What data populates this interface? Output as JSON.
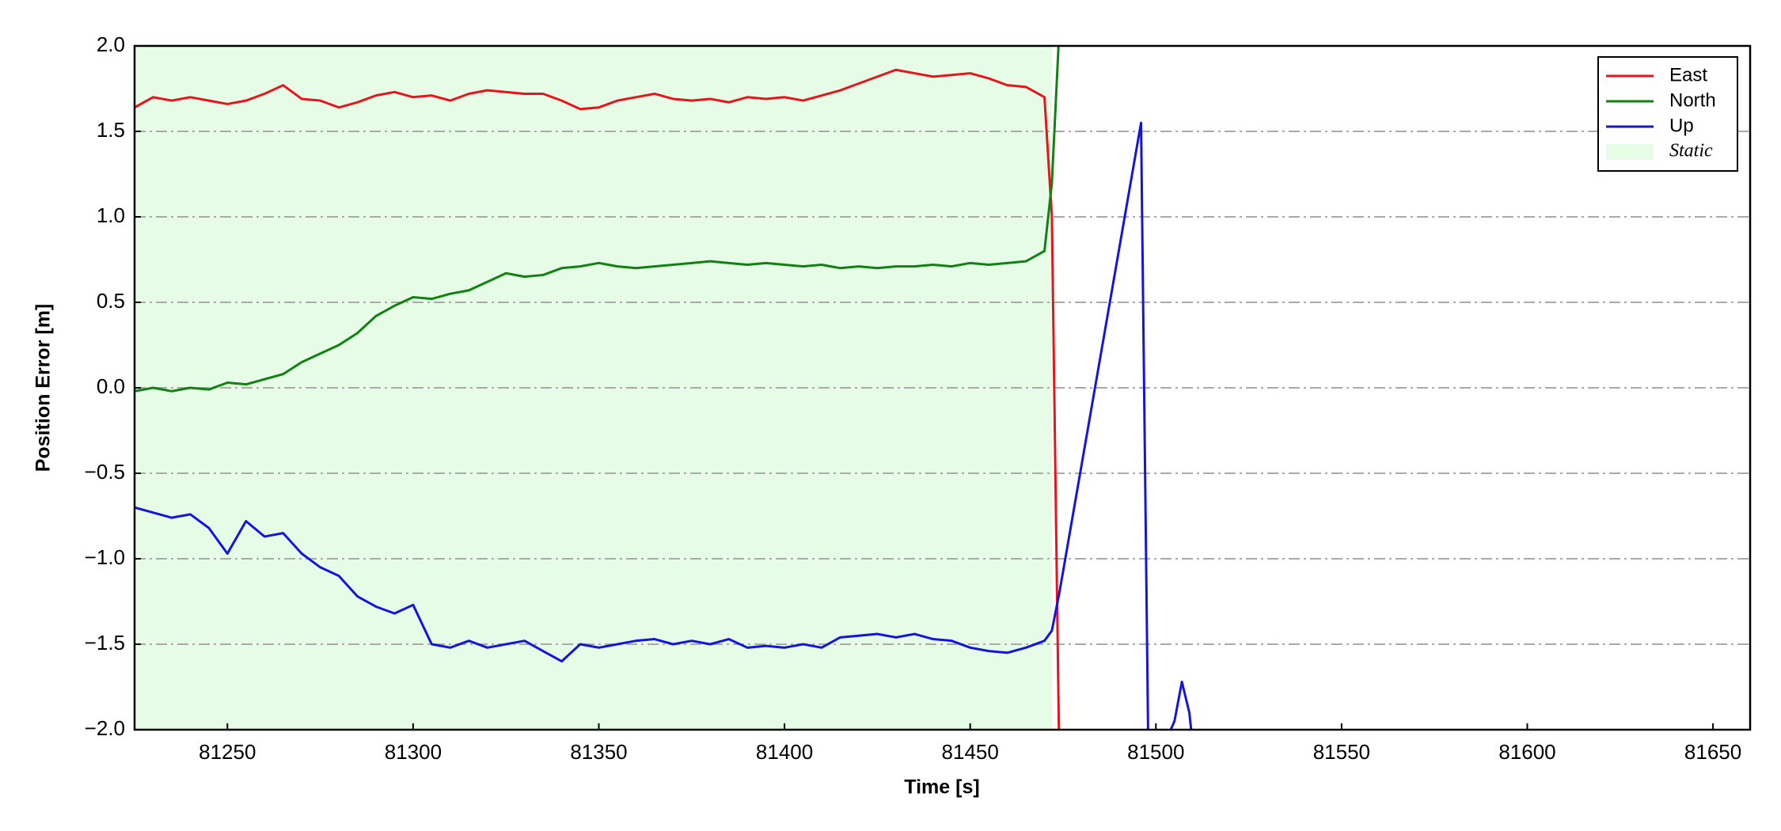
{
  "chart_data": {
    "type": "line",
    "xlabel": "Time [s]",
    "ylabel": "Position Error [m]",
    "x": [
      81225,
      81230,
      81235,
      81240,
      81245,
      81250,
      81255,
      81260,
      81265,
      81270,
      81275,
      81280,
      81285,
      81290,
      81295,
      81300,
      81305,
      81310,
      81315,
      81320,
      81325,
      81330,
      81335,
      81340,
      81345,
      81350,
      81355,
      81360,
      81365,
      81370,
      81375,
      81380,
      81385,
      81390,
      81395,
      81400,
      81405,
      81410,
      81415,
      81420,
      81425,
      81430,
      81435,
      81440,
      81445,
      81450,
      81455,
      81460,
      81465,
      81470,
      81472,
      81474,
      81496,
      81498,
      81500,
      81503,
      81505,
      81507,
      81509,
      81510
    ],
    "series": [
      {
        "name": "East",
        "color": "#e8141c",
        "values": [
          1.64,
          1.7,
          1.68,
          1.7,
          1.68,
          1.66,
          1.68,
          1.72,
          1.77,
          1.69,
          1.68,
          1.64,
          1.67,
          1.71,
          1.73,
          1.7,
          1.71,
          1.68,
          1.72,
          1.74,
          1.73,
          1.72,
          1.72,
          1.68,
          1.63,
          1.64,
          1.68,
          1.7,
          1.72,
          1.69,
          1.68,
          1.69,
          1.67,
          1.7,
          1.69,
          1.7,
          1.68,
          1.71,
          1.74,
          1.78,
          1.82,
          1.86,
          1.84,
          1.82,
          1.83,
          1.84,
          1.81,
          1.77,
          1.76,
          1.7,
          1.0,
          -2.2,
          null,
          null,
          null,
          null,
          null,
          null,
          null,
          null
        ]
      },
      {
        "name": "North",
        "color": "#128012",
        "values": [
          -0.02,
          0.0,
          -0.02,
          0.0,
          -0.01,
          0.03,
          0.02,
          0.05,
          0.08,
          0.15,
          0.2,
          0.25,
          0.32,
          0.42,
          0.48,
          0.53,
          0.52,
          0.55,
          0.57,
          0.62,
          0.67,
          0.65,
          0.66,
          0.7,
          0.71,
          0.73,
          0.71,
          0.7,
          0.71,
          0.72,
          0.73,
          0.74,
          0.73,
          0.72,
          0.73,
          0.72,
          0.71,
          0.72,
          0.7,
          0.71,
          0.7,
          0.71,
          0.71,
          0.72,
          0.71,
          0.73,
          0.72,
          0.73,
          0.74,
          0.8,
          1.2,
          2.1,
          null,
          null,
          null,
          null,
          null,
          null,
          null,
          null
        ]
      },
      {
        "name": "Up",
        "color": "#1414dc",
        "values": [
          -0.7,
          -0.73,
          -0.76,
          -0.74,
          -0.82,
          -0.97,
          -0.78,
          -0.87,
          -0.85,
          -0.97,
          -1.05,
          -1.1,
          -1.22,
          -1.28,
          -1.32,
          -1.27,
          -1.5,
          -1.52,
          -1.48,
          -1.52,
          -1.5,
          -1.48,
          -1.54,
          -1.6,
          -1.5,
          -1.52,
          -1.5,
          -1.48,
          -1.47,
          -1.5,
          -1.48,
          -1.5,
          -1.47,
          -1.52,
          -1.51,
          -1.52,
          -1.5,
          -1.52,
          -1.46,
          -1.45,
          -1.44,
          -1.46,
          -1.44,
          -1.47,
          -1.48,
          -1.52,
          -1.54,
          -1.55,
          -1.52,
          -1.48,
          -1.42,
          -1.2,
          1.55,
          -2.2,
          -2.4,
          -2.05,
          -1.95,
          -1.72,
          -1.9,
          -2.1
        ]
      }
    ],
    "shaded_regions": [
      {
        "name": "Static",
        "color": "#e6fce6",
        "start": 81225,
        "end": 81472
      }
    ],
    "xlim": [
      81225,
      81660
    ],
    "xticks": [
      81250,
      81300,
      81350,
      81400,
      81450,
      81500,
      81550,
      81600,
      81650
    ],
    "ylim": [
      -2,
      2
    ],
    "yticks": [
      {
        "value": -2,
        "label": "−2.0"
      },
      {
        "value": -1.5,
        "label": "−1.5"
      },
      {
        "value": -1,
        "label": "−1.0"
      },
      {
        "value": -0.5,
        "label": "−0.5"
      },
      {
        "value": 0,
        "label": "0.0"
      },
      0.5,
      {
        "value": 1,
        "label": "1.0"
      },
      1.5,
      {
        "value": 2,
        "label": "2.0"
      }
    ],
    "grid": true,
    "legend": "upper right"
  }
}
